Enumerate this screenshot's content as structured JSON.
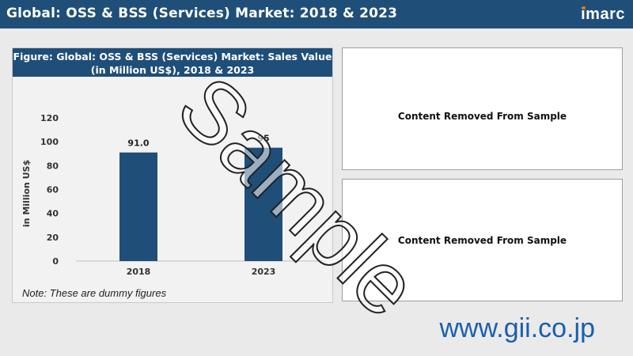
{
  "header": {
    "title": "Global: OSS & BSS (Services) Market: 2018 & 2023",
    "logo": "imarc"
  },
  "figure": {
    "title_line1": "Figure: Global: OSS & BSS (Services) Market: Sales Value",
    "title_line2": "(in Million US$), 2018 & 2023",
    "note": "Note: These are dummy figures"
  },
  "removed_1": {
    "text": "Content Removed From Sample"
  },
  "removed_2": {
    "text": "Content Removed From Sample"
  },
  "watermark": "Sample",
  "footer": {
    "url": "www.gii.co.jp"
  },
  "colors": {
    "header_bg": "#1f4e79",
    "bar": "#1f4e79",
    "url": "#1a5fae",
    "logo_dot": "#ff7a00"
  },
  "chart_data": {
    "type": "bar",
    "categories": [
      "2018",
      "2023"
    ],
    "values": [
      91.0,
      95
    ],
    "data_labels": [
      "91.0",
      "95"
    ],
    "xlabel": "",
    "ylabel": "in Million US$",
    "ylim": [
      0,
      120
    ],
    "yticks": [
      0,
      20,
      40,
      60,
      80,
      100,
      120
    ],
    "grid": false,
    "legend": "none"
  }
}
